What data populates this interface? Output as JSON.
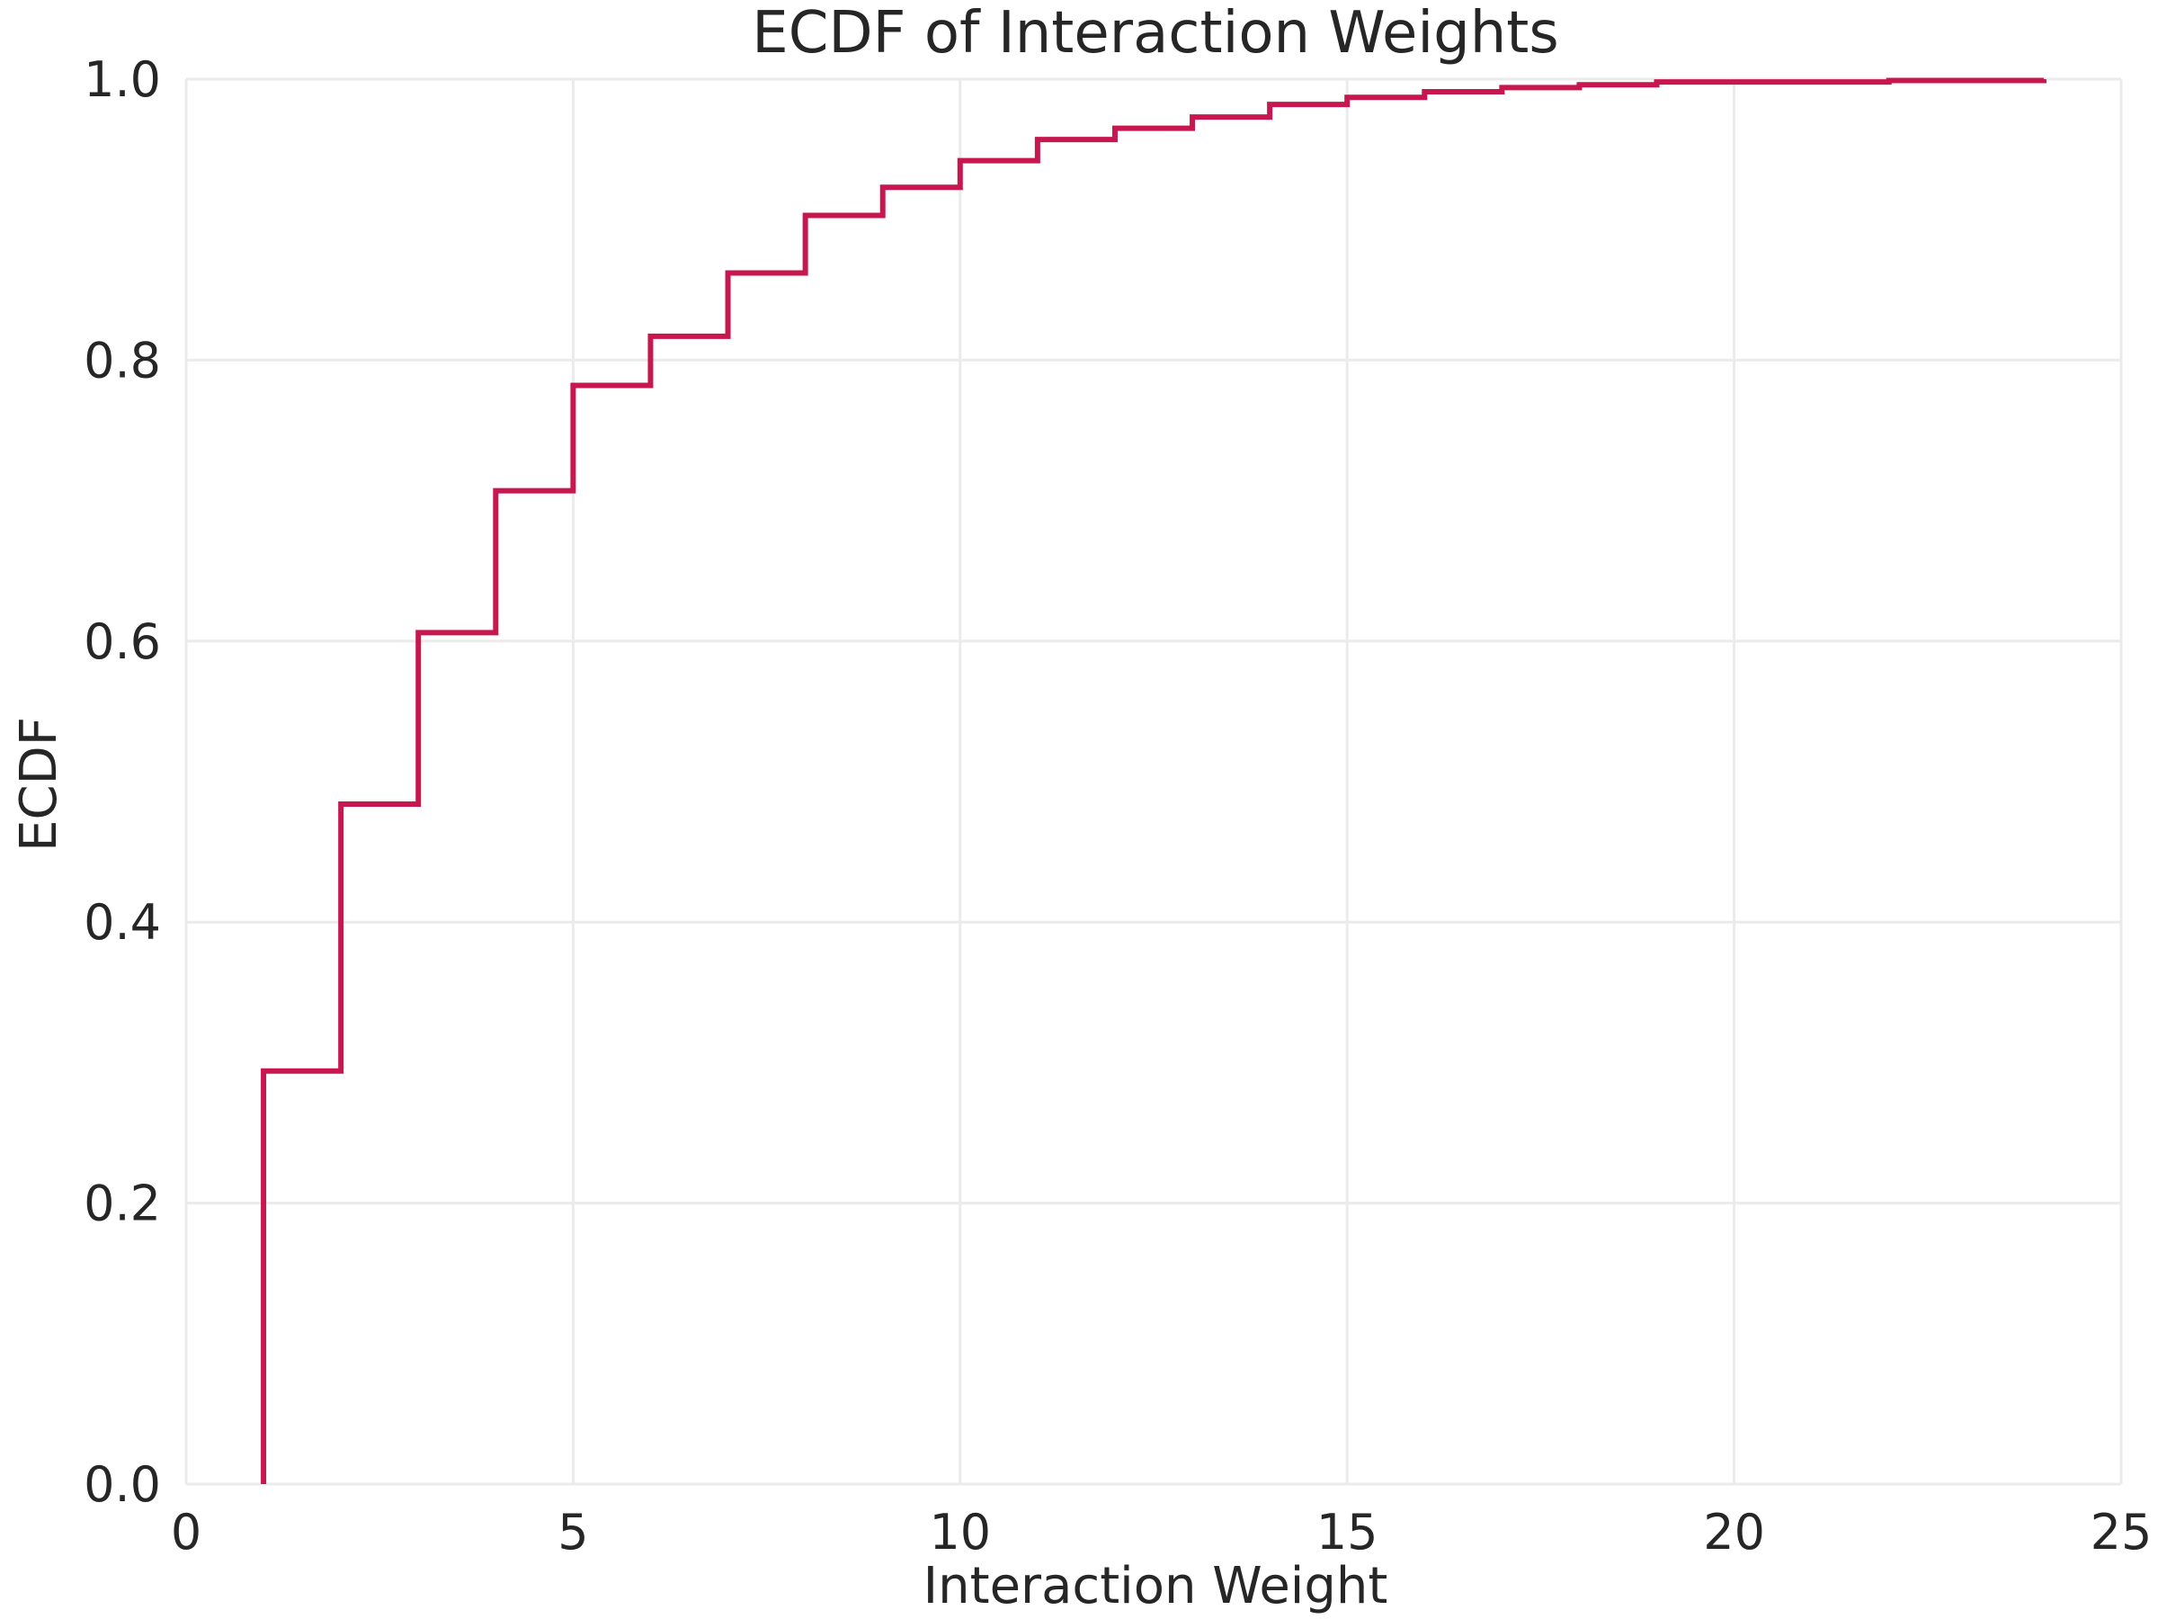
{
  "chart_data": {
    "type": "line",
    "subtype": "ecdf-step",
    "title": "ECDF of Interaction Weights",
    "xlabel": "Interaction Weight",
    "ylabel": "ECDF",
    "xlim": [
      0,
      25
    ],
    "ylim": [
      0,
      1
    ],
    "xticks": [
      0,
      5,
      10,
      15,
      20,
      25
    ],
    "yticks": [
      0.0,
      0.2,
      0.4,
      0.6,
      0.8,
      1.0
    ],
    "xtick_labels": [
      "0",
      "5",
      "10",
      "15",
      "20",
      "25"
    ],
    "ytick_labels": [
      "0.0",
      "0.2",
      "0.4",
      "0.6",
      "0.8",
      "1.0"
    ],
    "grid": true,
    "line_color": "#c8174f",
    "x": [
      1,
      2,
      3,
      4,
      5,
      6,
      7,
      8,
      9,
      10,
      11,
      12,
      13,
      14,
      15,
      16,
      17,
      18,
      19,
      20,
      21,
      22,
      23,
      24
    ],
    "y": [
      0.294,
      0.484,
      0.606,
      0.707,
      0.782,
      0.817,
      0.862,
      0.903,
      0.923,
      0.942,
      0.957,
      0.965,
      0.973,
      0.982,
      0.987,
      0.991,
      0.994,
      0.996,
      0.998,
      0.998,
      0.998,
      0.999,
      0.999,
      1.0
    ]
  }
}
